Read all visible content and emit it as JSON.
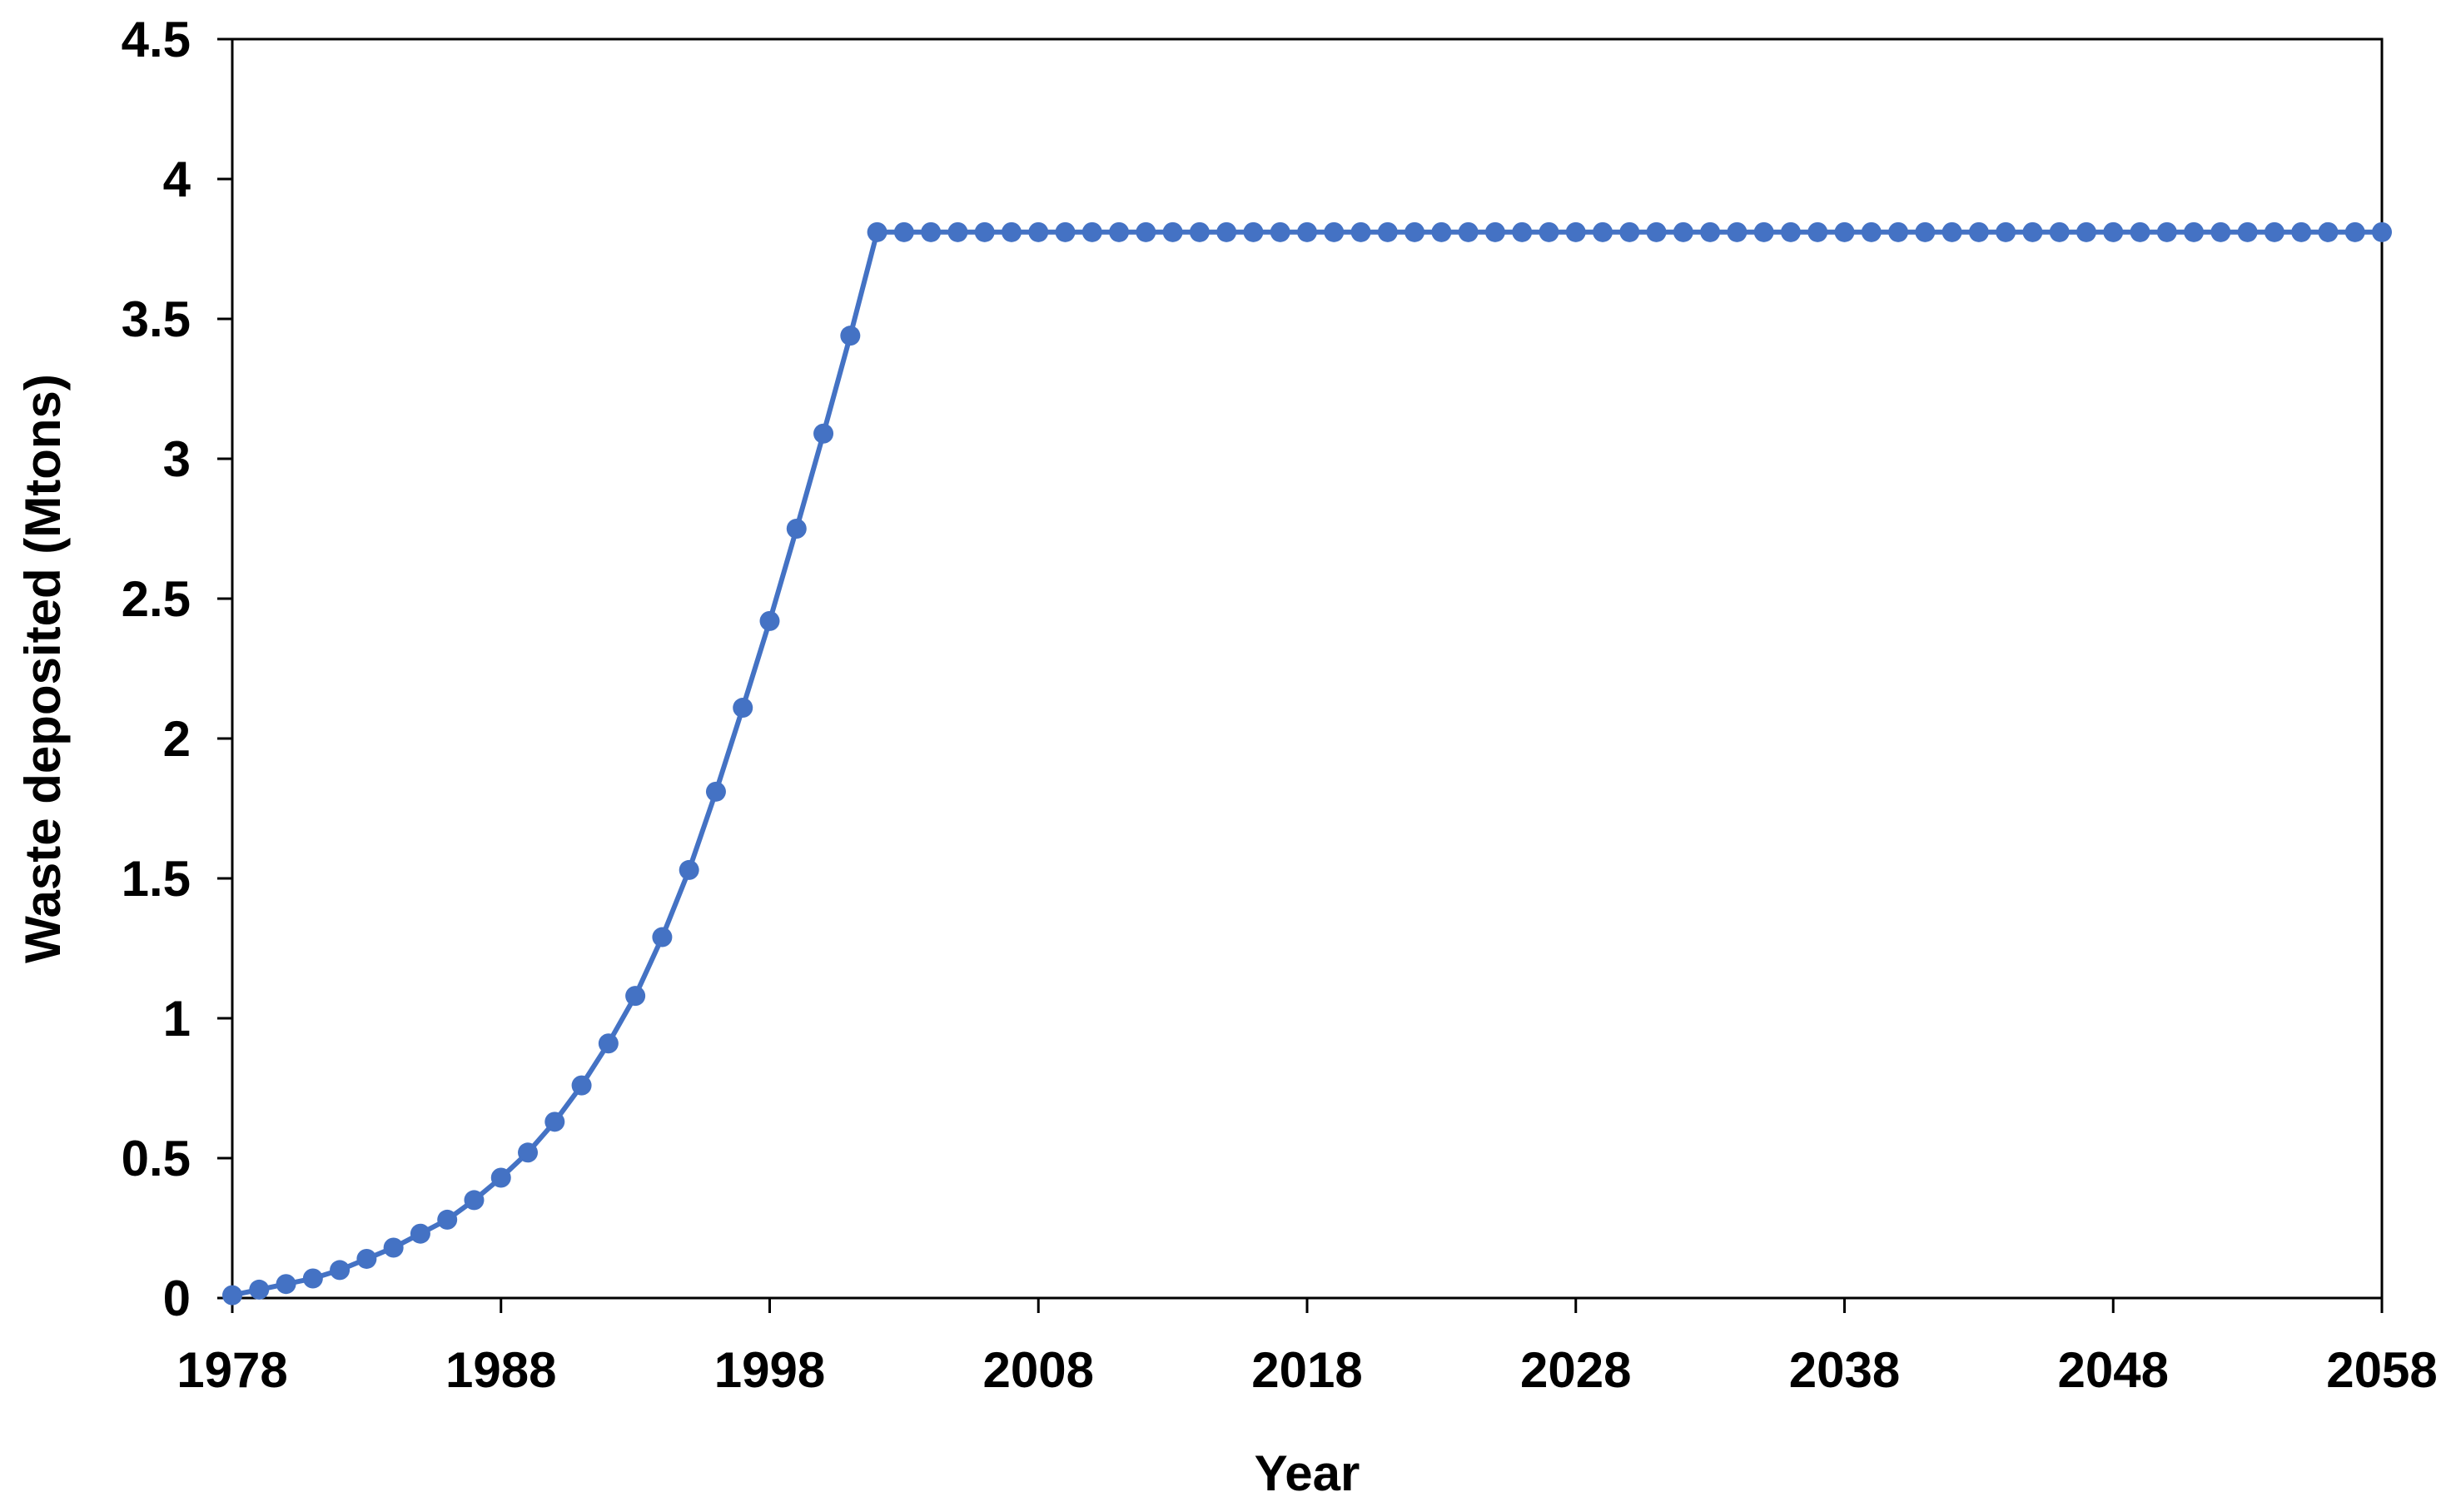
{
  "chart_data": {
    "type": "line",
    "title": "",
    "xlabel": "Year",
    "ylabel": "Waste deposited (Mtons)",
    "xlim": [
      1978,
      2058
    ],
    "ylim": [
      0,
      4.5
    ],
    "x_ticks": [
      1978,
      1988,
      1998,
      2008,
      2018,
      2028,
      2038,
      2048,
      2058
    ],
    "y_ticks": [
      0,
      0.5,
      1,
      1.5,
      2,
      2.5,
      3,
      3.5,
      4,
      4.5
    ],
    "y_tick_labels": [
      "0",
      "0.5",
      "1",
      "1.5",
      "2",
      "2.5",
      "3",
      "3.5",
      "4",
      "4.5"
    ],
    "grid": false,
    "legend": "none",
    "series_color": "#4472C4",
    "series": [
      {
        "x": [
          1978,
          1979,
          1980,
          1981,
          1982,
          1983,
          1984,
          1985,
          1986,
          1987,
          1988,
          1989,
          1990,
          1991,
          1992,
          1993,
          1994,
          1995,
          1996,
          1997,
          1998,
          1999,
          2000,
          2001,
          2002,
          2003,
          2004,
          2005,
          2006,
          2007,
          2008,
          2009,
          2010,
          2011,
          2012,
          2013,
          2014,
          2015,
          2016,
          2017,
          2018,
          2019,
          2020,
          2021,
          2022,
          2023,
          2024,
          2025,
          2026,
          2027,
          2028,
          2029,
          2030,
          2031,
          2032,
          2033,
          2034,
          2035,
          2036,
          2037,
          2038,
          2039,
          2040,
          2041,
          2042,
          2043,
          2044,
          2045,
          2046,
          2047,
          2048,
          2049,
          2050,
          2051,
          2052,
          2053,
          2054,
          2055,
          2056,
          2057,
          2058
        ],
        "values": [
          0.01,
          0.03,
          0.05,
          0.07,
          0.1,
          0.14,
          0.18,
          0.23,
          0.28,
          0.35,
          0.43,
          0.52,
          0.63,
          0.76,
          0.91,
          1.08,
          1.29,
          1.53,
          1.81,
          2.11,
          2.42,
          2.75,
          3.09,
          3.44,
          3.81,
          3.81,
          3.81,
          3.81,
          3.81,
          3.81,
          3.81,
          3.81,
          3.81,
          3.81,
          3.81,
          3.81,
          3.81,
          3.81,
          3.81,
          3.81,
          3.81,
          3.81,
          3.81,
          3.81,
          3.81,
          3.81,
          3.81,
          3.81,
          3.81,
          3.81,
          3.81,
          3.81,
          3.81,
          3.81,
          3.81,
          3.81,
          3.81,
          3.81,
          3.81,
          3.81,
          3.81,
          3.81,
          3.81,
          3.81,
          3.81,
          3.81,
          3.81,
          3.81,
          3.81,
          3.81,
          3.81,
          3.81,
          3.81,
          3.81,
          3.81,
          3.81,
          3.81,
          3.81,
          3.81,
          3.81,
          3.81
        ]
      }
    ]
  }
}
